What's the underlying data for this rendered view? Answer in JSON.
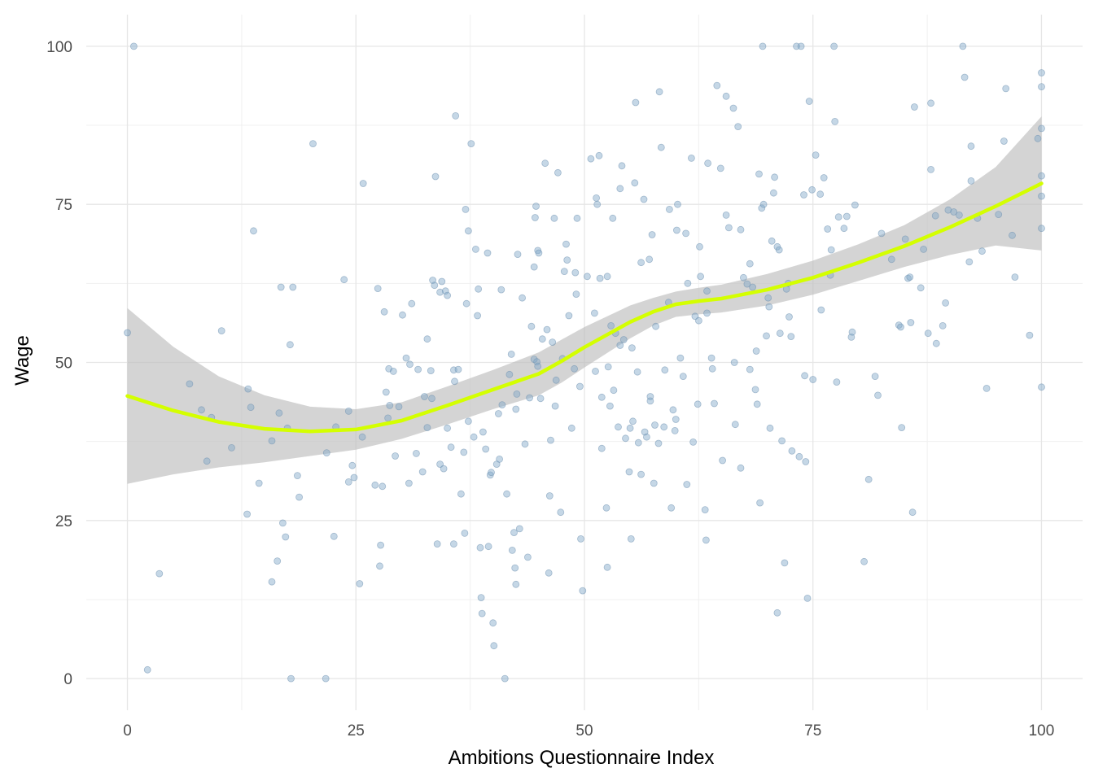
{
  "chart_data": {
    "type": "scatter",
    "title": "",
    "xlabel": "Ambitions Questionnaire Index",
    "ylabel": "Wage",
    "xlim": [
      -4.5,
      104.5
    ],
    "ylim": [
      -5,
      105
    ],
    "x_ticks": [
      0,
      25,
      50,
      75,
      100
    ],
    "x_tick_labels": [
      "0",
      "25",
      "50",
      "75",
      "100"
    ],
    "y_ticks": [
      0,
      25,
      50,
      75,
      100
    ],
    "y_tick_labels": [
      "0",
      "25",
      "50",
      "75",
      "100"
    ],
    "grid": true,
    "point_color": "#7ea6c8",
    "smooth_color": "#d4ff00",
    "band_color": "#bdbdbd",
    "points": [
      [
        0,
        54.7
      ],
      [
        0.7,
        100
      ],
      [
        2.2,
        1.4
      ],
      [
        3.5,
        16.6
      ],
      [
        6.8,
        46.6
      ],
      [
        8.1,
        42.5
      ],
      [
        8.7,
        34.4
      ],
      [
        9.2,
        41.3
      ],
      [
        10.3,
        55
      ],
      [
        11.4,
        36.5
      ],
      [
        13.1,
        26
      ],
      [
        13.2,
        45.8
      ],
      [
        13.5,
        42.9
      ],
      [
        13.8,
        70.8
      ],
      [
        14.4,
        30.9
      ],
      [
        15.8,
        15.3
      ],
      [
        15.8,
        37.6
      ],
      [
        16.4,
        18.6
      ],
      [
        16.6,
        42
      ],
      [
        16.8,
        61.9
      ],
      [
        17,
        24.6
      ],
      [
        17.3,
        22.4
      ],
      [
        17.5,
        39.6
      ],
      [
        17.8,
        52.8
      ],
      [
        17.9,
        0
      ],
      [
        18.1,
        61.9
      ],
      [
        18.6,
        32.1
      ],
      [
        18.8,
        28.7
      ],
      [
        20.3,
        84.6
      ],
      [
        21.7,
        0
      ],
      [
        21.8,
        35.7
      ],
      [
        22.6,
        22.5
      ],
      [
        22.8,
        39.8
      ],
      [
        23.7,
        63.1
      ],
      [
        24.2,
        42.3
      ],
      [
        24.2,
        31.1
      ],
      [
        24.6,
        33.7
      ],
      [
        24.8,
        31.8
      ],
      [
        25.4,
        15
      ],
      [
        25.7,
        38.2
      ],
      [
        25.8,
        78.3
      ],
      [
        27.1,
        30.6
      ],
      [
        27.4,
        61.7
      ],
      [
        27.6,
        17.8
      ],
      [
        27.7,
        21.1
      ],
      [
        27.9,
        30.4
      ],
      [
        28.1,
        58
      ],
      [
        28.3,
        45.3
      ],
      [
        28.6,
        49
      ],
      [
        28.7,
        43.2
      ],
      [
        29.1,
        48.6
      ],
      [
        29.3,
        35.2
      ],
      [
        29.7,
        43
      ],
      [
        30.1,
        57.5
      ],
      [
        30.5,
        50.7
      ],
      [
        30.8,
        30.9
      ],
      [
        31.1,
        59.3
      ],
      [
        31.6,
        35.6
      ],
      [
        31.8,
        48.9
      ],
      [
        32.3,
        32.7
      ],
      [
        32.5,
        44.6
      ],
      [
        32.8,
        53.7
      ],
      [
        32.8,
        39.7
      ],
      [
        33.2,
        48.7
      ],
      [
        33.4,
        63
      ],
      [
        33.6,
        62.2
      ],
      [
        33.7,
        79.4
      ],
      [
        33.9,
        21.3
      ],
      [
        34.2,
        61.1
      ],
      [
        34.2,
        33.9
      ],
      [
        34.4,
        62.8
      ],
      [
        34.6,
        33.2
      ],
      [
        34.8,
        61.3
      ],
      [
        35,
        60.6
      ],
      [
        35,
        39.6
      ],
      [
        35.4,
        36.6
      ],
      [
        35.7,
        21.3
      ],
      [
        35.7,
        48.8
      ],
      [
        35.8,
        47
      ],
      [
        35.9,
        89
      ],
      [
        36.2,
        48.9
      ],
      [
        36.5,
        29.2
      ],
      [
        36.8,
        35.8
      ],
      [
        36.9,
        23
      ],
      [
        37,
        74.2
      ],
      [
        37.1,
        59.3
      ],
      [
        37.3,
        70.8
      ],
      [
        37.3,
        40.7
      ],
      [
        37.6,
        84.6
      ],
      [
        37.9,
        38.2
      ],
      [
        38.1,
        67.9
      ],
      [
        38.3,
        57.4
      ],
      [
        38.4,
        61.6
      ],
      [
        38.6,
        20.7
      ],
      [
        38.7,
        12.8
      ],
      [
        38.8,
        10.3
      ],
      [
        38.9,
        39
      ],
      [
        39.2,
        36.3
      ],
      [
        39.4,
        67.3
      ],
      [
        39.5,
        20.9
      ],
      [
        39.7,
        32.2
      ],
      [
        39.8,
        32.6
      ],
      [
        40,
        8.8
      ],
      [
        40.1,
        5.2
      ],
      [
        40.4,
        33.9
      ],
      [
        40.7,
        34.7
      ],
      [
        40.9,
        61.5
      ],
      [
        41,
        43.3
      ],
      [
        41.3,
        0
      ],
      [
        41.5,
        29.2
      ],
      [
        41.8,
        48.1
      ],
      [
        42,
        51.3
      ],
      [
        42.1,
        20.3
      ],
      [
        42.3,
        23.1
      ],
      [
        42.4,
        17.5
      ],
      [
        42.5,
        14.9
      ],
      [
        42.6,
        45
      ],
      [
        42.7,
        67.1
      ],
      [
        42.9,
        23.7
      ],
      [
        43.2,
        60.2
      ],
      [
        43.5,
        37.1
      ],
      [
        43.8,
        19.2
      ],
      [
        44,
        44.4
      ],
      [
        44.2,
        55.7
      ],
      [
        44.5,
        65.1
      ],
      [
        44.5,
        50.5
      ],
      [
        44.6,
        72.9
      ],
      [
        44.7,
        74.7
      ],
      [
        44.8,
        50.1
      ],
      [
        44.9,
        67.7
      ],
      [
        45,
        67.3
      ],
      [
        45.2,
        44.3
      ],
      [
        45.4,
        53.7
      ],
      [
        45.7,
        81.5
      ],
      [
        45.9,
        55.2
      ],
      [
        46.1,
        16.7
      ],
      [
        46.2,
        28.9
      ],
      [
        46.3,
        37.7
      ],
      [
        46.7,
        72.8
      ],
      [
        46.8,
        43.1
      ],
      [
        46.9,
        47.2
      ],
      [
        47.1,
        80
      ],
      [
        47.4,
        26.3
      ],
      [
        47.6,
        50.6
      ],
      [
        47.8,
        64.4
      ],
      [
        48,
        68.7
      ],
      [
        48.1,
        66.2
      ],
      [
        48.3,
        57.4
      ],
      [
        48.6,
        39.6
      ],
      [
        48.9,
        49
      ],
      [
        49,
        64.2
      ],
      [
        49.1,
        60.8
      ],
      [
        49.2,
        72.8
      ],
      [
        49.5,
        46.2
      ],
      [
        49.6,
        22.1
      ],
      [
        49.8,
        13.9
      ],
      [
        50.3,
        63.6
      ],
      [
        50.7,
        82.2
      ],
      [
        51.1,
        57.8
      ],
      [
        51.2,
        48.6
      ],
      [
        51.3,
        76
      ],
      [
        51.4,
        75
      ],
      [
        51.6,
        82.7
      ],
      [
        51.7,
        63.3
      ],
      [
        51.9,
        36.4
      ],
      [
        52.4,
        27
      ],
      [
        52.5,
        17.6
      ],
      [
        52.5,
        63.6
      ],
      [
        52.6,
        49.3
      ],
      [
        52.8,
        43.1
      ],
      [
        52.9,
        55.8
      ],
      [
        53.1,
        72.8
      ],
      [
        53.2,
        45.6
      ],
      [
        53.4,
        54.6
      ],
      [
        53.7,
        39.8
      ],
      [
        53.9,
        77.5
      ],
      [
        54.1,
        81.1
      ],
      [
        54.3,
        53.6
      ],
      [
        54.5,
        38
      ],
      [
        54.9,
        32.7
      ],
      [
        55,
        39.6
      ],
      [
        55.1,
        22.1
      ],
      [
        55.2,
        52.3
      ],
      [
        55.3,
        40.7
      ],
      [
        55.5,
        78.4
      ],
      [
        55.6,
        91.1
      ],
      [
        55.9,
        37.3
      ],
      [
        56.2,
        32.3
      ],
      [
        56.5,
        75.8
      ],
      [
        56.6,
        39
      ],
      [
        56.8,
        38.2
      ],
      [
        57.1,
        66.3
      ],
      [
        57.2,
        44.6
      ],
      [
        57.2,
        43.9
      ],
      [
        57.4,
        70.2
      ],
      [
        57.6,
        30.9
      ],
      [
        57.7,
        40.1
      ],
      [
        57.8,
        55.7
      ],
      [
        58.2,
        92.8
      ],
      [
        58.4,
        84
      ],
      [
        58.7,
        39.8
      ],
      [
        58.8,
        48.8
      ],
      [
        59.2,
        59.5
      ],
      [
        59.5,
        27
      ],
      [
        59.7,
        42.5
      ],
      [
        59.9,
        39.2
      ],
      [
        60,
        41
      ],
      [
        60.2,
        75
      ],
      [
        60.5,
        50.7
      ],
      [
        60.8,
        47.8
      ],
      [
        61.1,
        70.4
      ],
      [
        61.2,
        30.7
      ],
      [
        61.3,
        62.5
      ],
      [
        61.7,
        82.3
      ],
      [
        61.9,
        37.4
      ],
      [
        62.1,
        57.3
      ],
      [
        62.4,
        43.4
      ],
      [
        62.5,
        56.6
      ],
      [
        62.6,
        68.3
      ],
      [
        62.7,
        63.6
      ],
      [
        63.2,
        26.7
      ],
      [
        63.3,
        21.9
      ],
      [
        63.4,
        57.8
      ],
      [
        63.5,
        81.5
      ],
      [
        63.9,
        50.7
      ],
      [
        64,
        49
      ],
      [
        64.2,
        43.5
      ],
      [
        64.5,
        93.8
      ],
      [
        64.9,
        80.7
      ],
      [
        65.1,
        34.5
      ],
      [
        65.5,
        92.1
      ],
      [
        65.8,
        71.3
      ],
      [
        66.3,
        90.2
      ],
      [
        66.4,
        50
      ],
      [
        66.5,
        40.2
      ],
      [
        66.8,
        87.3
      ],
      [
        67.1,
        33.3
      ],
      [
        67.1,
        71
      ],
      [
        67.4,
        63.4
      ],
      [
        68.1,
        65.6
      ],
      [
        68.4,
        61.9
      ],
      [
        68.7,
        45.7
      ],
      [
        68.8,
        51.8
      ],
      [
        68.9,
        43.4
      ],
      [
        69.1,
        79.8
      ],
      [
        69.2,
        27.8
      ],
      [
        69.4,
        74.4
      ],
      [
        69.5,
        100
      ],
      [
        69.6,
        75
      ],
      [
        69.9,
        54.2
      ],
      [
        70.1,
        60.2
      ],
      [
        70.2,
        58.8
      ],
      [
        70.3,
        39.6
      ],
      [
        70.5,
        69.2
      ],
      [
        70.7,
        76.8
      ],
      [
        70.8,
        79.3
      ],
      [
        71.1,
        68.3
      ],
      [
        71.1,
        10.4
      ],
      [
        71.3,
        67.8
      ],
      [
        71.4,
        54.6
      ],
      [
        71.6,
        37.6
      ],
      [
        71.9,
        18.3
      ],
      [
        72.1,
        61.6
      ],
      [
        72.3,
        62.5
      ],
      [
        72.4,
        57.2
      ],
      [
        72.6,
        54.1
      ],
      [
        72.7,
        36
      ],
      [
        73.2,
        100
      ],
      [
        73.5,
        35.1
      ],
      [
        73.7,
        100
      ],
      [
        74,
        76.5
      ],
      [
        74.1,
        47.9
      ],
      [
        74.2,
        34.3
      ],
      [
        74.4,
        12.7
      ],
      [
        74.6,
        91.3
      ],
      [
        74.9,
        77.3
      ],
      [
        75,
        47.3
      ],
      [
        75.3,
        82.8
      ],
      [
        75.8,
        76.6
      ],
      [
        75.9,
        58.3
      ],
      [
        76.2,
        79.2
      ],
      [
        76.6,
        71.1
      ],
      [
        76.9,
        63.8
      ],
      [
        77,
        67.8
      ],
      [
        77.3,
        100
      ],
      [
        77.4,
        88.1
      ],
      [
        77.6,
        46.9
      ],
      [
        77.8,
        73
      ],
      [
        78.4,
        71.2
      ],
      [
        78.7,
        73.1
      ],
      [
        79.2,
        54
      ],
      [
        79.3,
        54.8
      ],
      [
        79.6,
        74.9
      ],
      [
        80.6,
        18.5
      ],
      [
        81.1,
        31.5
      ],
      [
        81.8,
        47.8
      ],
      [
        82.1,
        44.8
      ],
      [
        82.5,
        70.4
      ],
      [
        83.6,
        66.3
      ],
      [
        84.4,
        55.9
      ],
      [
        84.6,
        55.6
      ],
      [
        84.7,
        39.7
      ],
      [
        85.1,
        69.5
      ],
      [
        85.4,
        63.3
      ],
      [
        85.6,
        63.5
      ],
      [
        85.7,
        56.3
      ],
      [
        85.9,
        26.3
      ],
      [
        86.1,
        90.4
      ],
      [
        86.8,
        61.8
      ],
      [
        87.1,
        67.9
      ],
      [
        87.6,
        54.6
      ],
      [
        87.9,
        91
      ],
      [
        87.9,
        80.5
      ],
      [
        88.4,
        73.2
      ],
      [
        88.5,
        53
      ],
      [
        89.2,
        55.8
      ],
      [
        89.5,
        59.4
      ],
      [
        89.8,
        74.1
      ],
      [
        90.4,
        73.8
      ],
      [
        91,
        73.3
      ],
      [
        91.4,
        100
      ],
      [
        91.6,
        95.1
      ],
      [
        92.1,
        65.9
      ],
      [
        92.3,
        84.2
      ],
      [
        92.3,
        78.7
      ],
      [
        93,
        72.8
      ],
      [
        93.5,
        67.6
      ],
      [
        94,
        45.9
      ],
      [
        95.3,
        73.4
      ],
      [
        95.9,
        85
      ],
      [
        96.1,
        93.3
      ],
      [
        96.8,
        70.1
      ],
      [
        97.1,
        63.5
      ],
      [
        98.7,
        54.3
      ],
      [
        99.6,
        85.4
      ],
      [
        100,
        95.8
      ],
      [
        100,
        93.6
      ],
      [
        100,
        87
      ],
      [
        100,
        79.5
      ],
      [
        100,
        76.3
      ],
      [
        100,
        71.2
      ],
      [
        100,
        46.1
      ],
      [
        60.1,
        70.9
      ],
      [
        59.3,
        74.2
      ],
      [
        56.2,
        65.8
      ],
      [
        53.9,
        52.7
      ],
      [
        55.8,
        48.5
      ],
      [
        44.9,
        49.4
      ],
      [
        42.5,
        42.6
      ],
      [
        46.5,
        53.2
      ],
      [
        40.6,
        41.9
      ],
      [
        33.3,
        44.3
      ],
      [
        28.5,
        41.2
      ],
      [
        30.9,
        49.7
      ],
      [
        51.9,
        44.5
      ],
      [
        63.4,
        61.3
      ],
      [
        68.1,
        48.9
      ],
      [
        65.5,
        73.3
      ],
      [
        67.8,
        62.4
      ],
      [
        58.1,
        37.2
      ]
    ],
    "smooth": {
      "x": [
        0,
        5,
        10,
        15,
        20,
        25,
        30,
        35,
        40,
        45,
        47.5,
        50,
        52.5,
        55,
        57.5,
        60,
        62.5,
        65,
        70,
        75,
        80,
        85,
        90,
        95,
        100
      ],
      "y": [
        44.7,
        42.4,
        40.6,
        39.5,
        39.1,
        39.4,
        40.8,
        43.2,
        45.7,
        48.2,
        50.2,
        52.4,
        54.4,
        56.4,
        58,
        59.2,
        59.7,
        60.1,
        61.5,
        63.4,
        65.8,
        68.4,
        71.4,
        74.7,
        78.3
      ],
      "lower": [
        30.8,
        32.3,
        33.4,
        34.2,
        35.2,
        36.2,
        37.9,
        40.2,
        42.6,
        44.8,
        46.8,
        49.2,
        51.5,
        53.8,
        55.8,
        57.2,
        57.6,
        57.9,
        59,
        60.7,
        62.9,
        65.1,
        67,
        68.5,
        67.7
      ],
      "upper": [
        58.6,
        52.5,
        47.8,
        44.8,
        43,
        42.6,
        43.7,
        46.2,
        48.8,
        51.6,
        53.6,
        55.6,
        57.3,
        59,
        60.2,
        61.2,
        61.8,
        62.3,
        64,
        66.1,
        68.7,
        71.7,
        75.8,
        80.9,
        88.9
      ]
    }
  }
}
